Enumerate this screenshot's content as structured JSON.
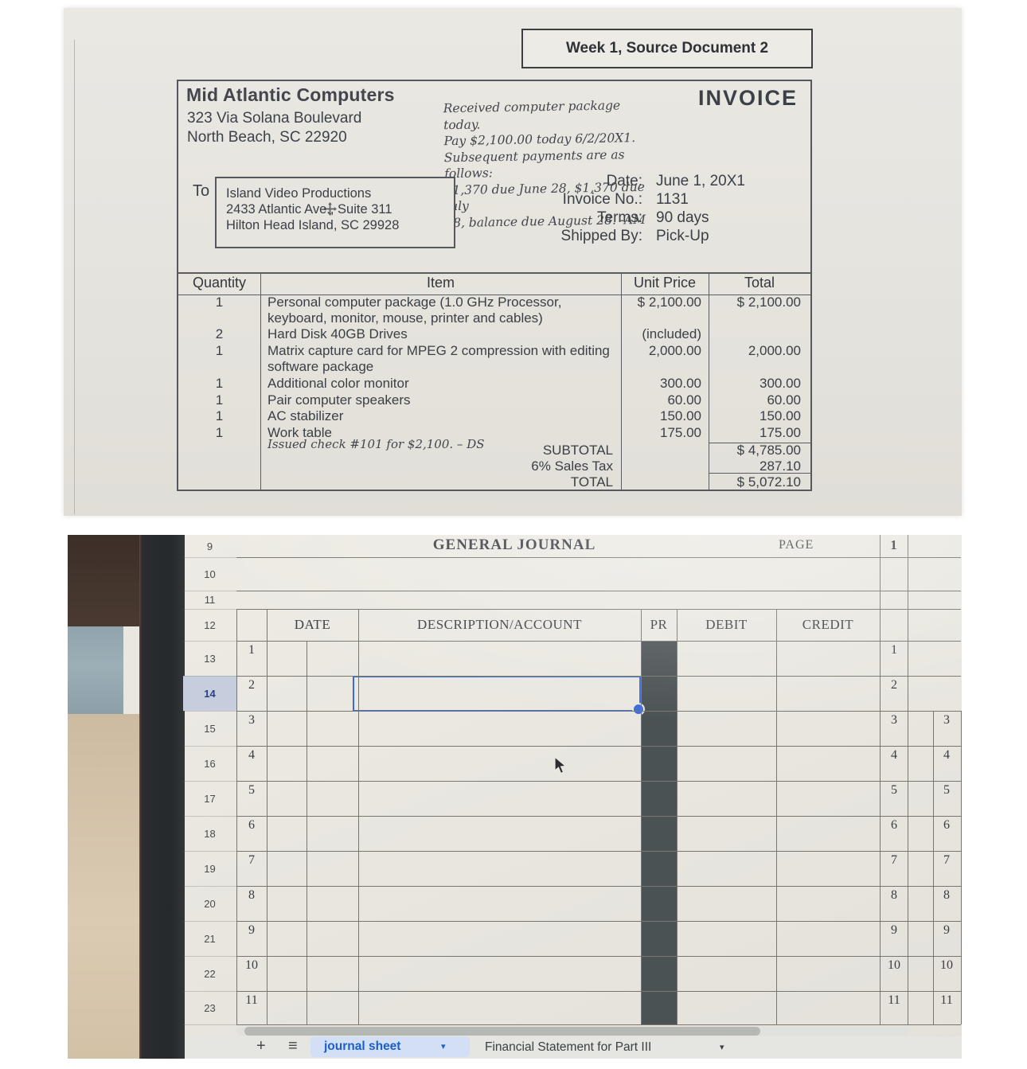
{
  "source_doc": {
    "banner": "Week 1, Source Document 2",
    "company": {
      "name": "Mid Atlantic Computers",
      "address1": "323 Via Solana Boulevard",
      "address2": "North Beach, SC 22920"
    },
    "invoice_label": "INVOICE",
    "handwritten_note": [
      "Received computer package today.",
      "Pay $2,100.00 today 6/2/20X1.",
      "Subsequent payments are as follows:",
      "$1,370 due June 28, $1,370 due July",
      "28, balance due August 28. -AM"
    ],
    "to_label": "To",
    "bill_to": [
      "Island Video Productions",
      "2433 Atlantic Ave., Suite 311",
      "Hilton Head Island, SC  29928"
    ],
    "meta": [
      {
        "label": "Date:",
        "value": "June 1, 20X1"
      },
      {
        "label": "Invoice No.:",
        "value": "1131"
      },
      {
        "label": "Terms:",
        "value": "90 days"
      },
      {
        "label": "Shipped By:",
        "value": "Pick-Up"
      }
    ],
    "table": {
      "headers": [
        "Quantity",
        "Item",
        "Unit Price",
        "Total"
      ],
      "rows": [
        {
          "qty": "1",
          "item": "Personal computer package (1.0 GHz Processor, keyboard, monitor, mouse, printer and cables)",
          "unit": "$ 2,100.00",
          "total": "$ 2,100.00"
        },
        {
          "qty": "2",
          "item": "Hard Disk 40GB Drives",
          "unit": "(included)",
          "total": ""
        },
        {
          "qty": "1",
          "item": "Matrix capture card for MPEG 2 compression with editing software package",
          "unit": "2,000.00",
          "total": "2,000.00"
        },
        {
          "qty": "1",
          "item": "Additional color monitor",
          "unit": "300.00",
          "total": "300.00"
        },
        {
          "qty": "1",
          "item": "Pair computer speakers",
          "unit": "60.00",
          "total": "60.00"
        },
        {
          "qty": "1",
          "item": "AC stabilizer",
          "unit": "150.00",
          "total": "150.00"
        },
        {
          "qty": "1",
          "item": "Work table",
          "unit": "175.00",
          "total": "175.00"
        }
      ],
      "summary": [
        {
          "label": "SUBTOTAL",
          "value": "$ 4,785.00"
        },
        {
          "label": "6% Sales Tax",
          "value": "287.10"
        },
        {
          "label": "TOTAL",
          "value": "$ 5,072.10"
        }
      ],
      "handwritten": "Issued check #101 for $2,100. – DS"
    }
  },
  "journal": {
    "title": "GENERAL JOURNAL",
    "page_label": "PAGE",
    "page_number": "1",
    "columns": [
      "DATE",
      "DESCRIPTION/ACCOUNT",
      "PR",
      "DEBIT",
      "CREDIT"
    ],
    "sheet_rows": [
      "9",
      "10",
      "11",
      "12",
      "13",
      "14",
      "15",
      "16",
      "17",
      "18",
      "19",
      "20",
      "21",
      "22",
      "23"
    ],
    "selected_sheet_row": "14",
    "line_numbers": [
      "1",
      "2",
      "3",
      "4",
      "5",
      "6",
      "7",
      "8",
      "9",
      "10",
      "11"
    ],
    "right_partial_numbers": [
      "3",
      "4",
      "5",
      "6",
      "7",
      "8",
      "9",
      "10",
      "11"
    ],
    "tabs": {
      "add_icon": "+",
      "all_sheets_icon": "≡",
      "active_label": "journal sheet",
      "next_label": "Financial Statement for Part III",
      "caret_icon": "▾"
    },
    "colors": {
      "selection_blue": "#3c6bd9",
      "active_tab_blue": "#1b5fc7",
      "pr_band": "#4b5254",
      "row_highlight": "#c6cedd"
    }
  }
}
